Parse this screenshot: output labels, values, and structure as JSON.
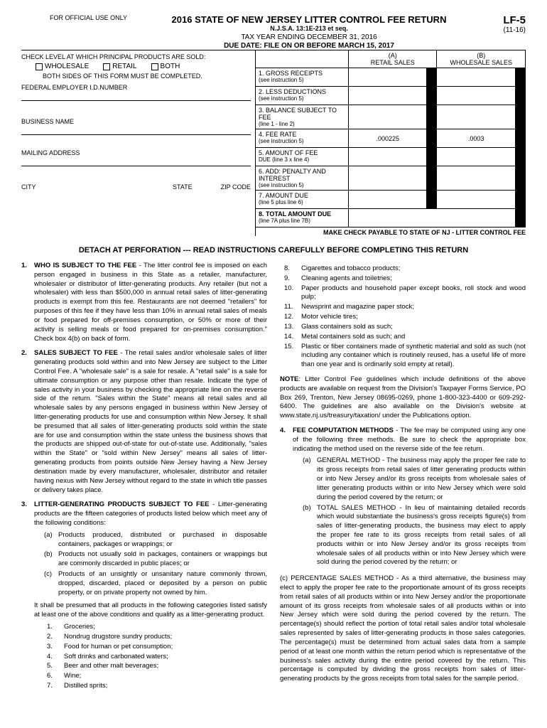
{
  "header": {
    "official_use": "FOR OFFICIAL USE ONLY",
    "title": "2016 STATE OF NEW JERSEY LITTER CONTROL FEE RETURN",
    "statute": "N.J.S.A. 13:1E-213 et seq.",
    "tax_year": "TAX YEAR ENDING DECEMBER 31, 2016",
    "due_date": "DUE DATE:  FILE ON OR BEFORE MARCH 15, 2017",
    "form_id": "LF-5",
    "form_rev": "(11-16)"
  },
  "check_level": {
    "label": "CHECK LEVEL AT WHICH PRINCIPAL PRODUCTS ARE SOLD:",
    "options": [
      "WHOLESALE",
      "RETAIL",
      "BOTH"
    ],
    "both_sides": "BOTH SIDES OF THIS FORM MUST BE COMPLETED."
  },
  "fields": {
    "fein": "FEDERAL EMPLOYER I.D.NUMBER",
    "business": "BUSINESS NAME",
    "mailing": "MAILING ADDRESS",
    "city": "CITY",
    "state": "STATE",
    "zip": "ZIP CODE"
  },
  "calc": {
    "col_a": "(A)\nRETAIL SALES",
    "col_b": "(B)\nWHOLESALE SALES",
    "rows": [
      {
        "label": "1. GROSS RECEIPTS",
        "sub": "(see instruction 5)"
      },
      {
        "label": "2. LESS DEDUCTIONS",
        "sub": "(see instruction 5)"
      },
      {
        "label": "3. BALANCE SUBJECT TO FEE",
        "sub": "(line 1 - line 2)"
      },
      {
        "label": "4. FEE RATE",
        "sub": "(see instruction 5)",
        "a": ".000225",
        "b": ".0003"
      },
      {
        "label": "5. AMOUNT OF FEE",
        "sub": "DUE (line 3 x line 4)"
      },
      {
        "label": "6. ADD:  PENALTY AND INTEREST",
        "sub": "(see instruction 5)"
      },
      {
        "label": "7. AMOUNT DUE",
        "sub": "(line 5 plus line 6)"
      },
      {
        "label": "8. TOTAL AMOUNT DUE",
        "sub": "(line 7A plus line 7B)",
        "bold": true
      }
    ],
    "payable": "MAKE CHECK PAYABLE TO STATE OF NJ - LITTER CONTROL FEE"
  },
  "detach": "DETACH AT PERFORATION --- READ INSTRUCTIONS CAREFULLY BEFORE COMPLETING THIS RETURN",
  "inst": {
    "i1": {
      "num": "1.",
      "head": "WHO IS SUBJECT TO THE FEE",
      "body": " - The litter control fee is imposed on each person engaged in business in this State as a retailer, manufacturer, wholesaler or distributor of litter-generating products. Any retailer (but not a wholesaler) with less than $500,000 in annual retail sales of litter-generating products is exempt from this fee. Restaurants are not deemed \"retailers\" for purposes of this fee if they have less than 10% in annual retail sales of meals or food prepared for off-premises consumption, or 50% or more of their activity is selling meals or food prepared for on-premises consumption.\" Check box 4(b) on back of form."
    },
    "i2": {
      "num": "2.",
      "head": "SALES SUBJECT TO FEE",
      "body": " - The retail sales and/or wholesale sales of litter generating products sold within and into New Jersey are subject to the Litter Control Fee. A \"wholesale sale\" is a sale for resale. A \"retail sale\" is a sale for ultimate consumption or any purpose other than resale. Indicate the type of sales activity in your business by checking the appropriate line on the reverse side of the return. \"Sales within the State\" means all retail sales and all wholesale sales by any persons engaged in business within New Jersey of litter-generating products for use and consumption within New Jersey. It shall be presumed that all sales of litter-generating products sold within the state are for use and consumption within the state unless the business shows that the products are shipped out-of-state for out-of-state use. Additionally, \"sales within the State\" or \"sold within New Jersey\" means all sales of litter-generating products from points outside New Jersey having a New Jersey destination made by every manufacturer, wholesaler, distributor and retailer having nexus with New Jersey without regard to the state in which title passes or delivery takes place."
    },
    "i3": {
      "num": "3.",
      "head": "LITTER-GENERATING PRODUCTS SUBJECT TO FEE",
      "body": " - Litter-generating products are the fifteen categories of products listed below which meet any of the following conditions:",
      "subs": [
        {
          "l": "(a)",
          "t": "Products produced, distributed or purchased in disposable containers, packages or wrappings; or"
        },
        {
          "l": "(b)",
          "t": "Products not usually sold in packages, containers or wrappings but are commonly discarded in public places; or"
        },
        {
          "l": "(c)",
          "t": "Products of an unsightly or unsanitary nature commonly thrown, dropped, discarded, placed or deposited by a person on public property, or on private property not owned by him."
        }
      ],
      "presume": "It shall be presumed that all products in the following categories listed satisfy at least one of the above conditions and qualify as a litter-generating product.",
      "products_left": [
        {
          "n": "1.",
          "t": "Groceries;"
        },
        {
          "n": "2.",
          "t": "Nondrug drugstore sundry products;"
        },
        {
          "n": "3.",
          "t": "Food for human or pet consumption;"
        },
        {
          "n": "4.",
          "t": "Soft drinks and carbonated waters;"
        },
        {
          "n": "5.",
          "t": "Beer and other malt beverages;"
        },
        {
          "n": "6.",
          "t": "Wine;"
        },
        {
          "n": "7.",
          "t": "Distilled sprits;"
        }
      ]
    },
    "products_right": [
      {
        "n": "8.",
        "t": "Cigarettes and tobacco products;"
      },
      {
        "n": "9.",
        "t": "Cleaning agents and toiletries;"
      },
      {
        "n": "10.",
        "t": "Paper products and household paper except books, roll stock and wood pulp;"
      },
      {
        "n": "11.",
        "t": "Newsprint and magazine paper stock;"
      },
      {
        "n": "12.",
        "t": "Motor vehicle tires;"
      },
      {
        "n": "13.",
        "t": "Glass containers sold as such;"
      },
      {
        "n": "14.",
        "t": "Metal containers sold as such; and"
      },
      {
        "n": "15.",
        "t": "Plastic or fiber containers made of synthetic material and sold as such (not including any container which is routinely reused, has a useful life of more than one year and is ordinarily sold empty at retail)."
      }
    ],
    "note": "NOTE: Litter Control Fee guidelines which include definitions of the above products are available on request from the Division's Taxpayer Forms Service, PO Box 269, Trenton, New Jersey 08695-0269, phone 1-800-323-4400 or 609-292-6400. The guidelines are also available on the Division's website at www.state.nj.us/treasury/taxation/ under the Publications option.",
    "i4": {
      "num": "4.",
      "head": "FEE COMPUTATION METHODS",
      "body": " - The fee may be computed using any one of the following three methods. Be sure to check the appropriate box indicating the method used on the reverse side of the fee return.",
      "subs": [
        {
          "l": "(a)",
          "t": "GENERAL METHOD - The business may apply the proper fee rate to its gross receipts from retail sales of litter generating products within or into New Jersey and/or its gross receipts from wholesale sales of litter generating products within or into New Jersey which were sold during the period covered by the return; or"
        },
        {
          "l": "(b)",
          "t": "TOTAL SALES METHOD - In lieu of maintaining detailed records which would substantiate the business's gross receipts figure(s) from sales of litter-generating products, the business may elect to apply the proper fee rate to its gross receipts from retail sales of all products within or into New Jersey and/or its gross receipts from wholesale sales of all products within or into New Jersey which were sold during the period covered by the return; or"
        }
      ],
      "sub_c": "(c)   PERCENTAGE SALES METHOD - As a third alternative, the business may elect to apply the proper fee rate to the proportionate amount of its gross receipts from retail sales of all products within or into New Jersey and/or the proportionate amount of its gross receipts from wholesale sales of all products within or into New Jersey which were sold during the period covered by the return. The percentage(s) should reflect the portion of total retail sales and/or total wholesale sales represented by sales of litter-generating products in those sales categories. The percentage(s) must be determined from actual sales data from a sample period of at least one month within the return period which is representative of the business's sales activity during the entire period covered by the return. This percentage is computed by dividing the gross receipts from sales of litter-generating products by the gross receipts from total sales for the sample period."
    }
  }
}
